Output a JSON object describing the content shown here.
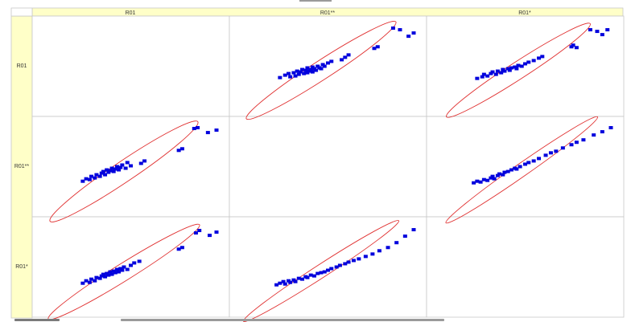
{
  "matrix": {
    "column_headers": [
      "R01",
      "R01**",
      "R01*"
    ],
    "row_headers": [
      "R01",
      "R01**",
      "R01*"
    ],
    "colors": {
      "header_bg": "#ffffc8",
      "grid": "#c8c8c8",
      "point": "#0000dd",
      "ellipse": "#e03030"
    }
  },
  "chart_data": {
    "type": "scatter",
    "title": "",
    "xlabel": "",
    "ylabel": "",
    "grid": false,
    "legend": "none",
    "panels": [
      {
        "row": "R01",
        "col": "R01**",
        "empty": false,
        "xlim": [
          0,
          100
        ],
        "ylim": [
          0,
          100
        ],
        "ellipse": {
          "cx": 46,
          "cy": 45,
          "rx": 52,
          "ry": 5.5,
          "angle": 33
        },
        "points": [
          [
            22,
            36
          ],
          [
            25,
            39
          ],
          [
            27,
            41
          ],
          [
            28,
            37
          ],
          [
            30,
            42
          ],
          [
            31,
            38
          ],
          [
            32,
            44
          ],
          [
            33,
            40
          ],
          [
            34,
            43
          ],
          [
            35,
            46
          ],
          [
            36,
            41
          ],
          [
            37,
            45
          ],
          [
            38,
            42
          ],
          [
            38,
            48
          ],
          [
            39,
            44
          ],
          [
            40,
            46
          ],
          [
            41,
            49
          ],
          [
            41,
            43
          ],
          [
            42,
            47
          ],
          [
            43,
            45
          ],
          [
            44,
            50
          ],
          [
            45,
            48
          ],
          [
            46,
            47
          ],
          [
            47,
            52
          ],
          [
            48,
            50
          ],
          [
            50,
            54
          ],
          [
            52,
            56
          ],
          [
            58,
            58
          ],
          [
            60,
            61
          ],
          [
            62,
            64
          ],
          [
            77,
            72
          ],
          [
            79,
            74
          ],
          [
            92,
            95
          ],
          [
            88,
            97
          ],
          [
            97,
            87
          ],
          [
            100,
            91
          ]
        ]
      },
      {
        "row": "R01",
        "col": "R01*",
        "empty": false,
        "xlim": [
          0,
          100
        ],
        "ylim": [
          0,
          100
        ],
        "ellipse": {
          "cx": 46,
          "cy": 45,
          "rx": 50,
          "ry": 5,
          "angle": 33
        },
        "points": [
          [
            22,
            35
          ],
          [
            25,
            37
          ],
          [
            26,
            40
          ],
          [
            28,
            38
          ],
          [
            30,
            41
          ],
          [
            31,
            43
          ],
          [
            33,
            40
          ],
          [
            34,
            44
          ],
          [
            36,
            42
          ],
          [
            37,
            46
          ],
          [
            38,
            44
          ],
          [
            40,
            47
          ],
          [
            41,
            45
          ],
          [
            42,
            48
          ],
          [
            44,
            49
          ],
          [
            45,
            47
          ],
          [
            46,
            51
          ],
          [
            48,
            50
          ],
          [
            50,
            53
          ],
          [
            52,
            55
          ],
          [
            55,
            57
          ],
          [
            58,
            60
          ],
          [
            60,
            62
          ],
          [
            77,
            74
          ],
          [
            78,
            76
          ],
          [
            80,
            73
          ],
          [
            88,
            95
          ],
          [
            92,
            93
          ],
          [
            95,
            89
          ],
          [
            98,
            95
          ]
        ]
      },
      {
        "row": "R01**",
        "col": "R01",
        "empty": false,
        "xlim": [
          0,
          100
        ],
        "ylim": [
          0,
          100
        ],
        "ellipse": {
          "cx": 46,
          "cy": 44,
          "rx": 52,
          "ry": 6,
          "angle": 34
        },
        "points": [
          [
            22,
            32
          ],
          [
            24,
            35
          ],
          [
            26,
            34
          ],
          [
            27,
            38
          ],
          [
            29,
            36
          ],
          [
            30,
            40
          ],
          [
            32,
            38
          ],
          [
            33,
            42
          ],
          [
            34,
            44
          ],
          [
            35,
            40
          ],
          [
            36,
            46
          ],
          [
            37,
            43
          ],
          [
            38,
            45
          ],
          [
            39,
            48
          ],
          [
            40,
            44
          ],
          [
            41,
            47
          ],
          [
            42,
            50
          ],
          [
            43,
            46
          ],
          [
            44,
            49
          ],
          [
            45,
            52
          ],
          [
            47,
            48
          ],
          [
            48,
            55
          ],
          [
            50,
            51
          ],
          [
            56,
            54
          ],
          [
            58,
            57
          ],
          [
            78,
            70
          ],
          [
            80,
            72
          ],
          [
            87,
            97
          ],
          [
            89,
            98
          ],
          [
            95,
            92
          ],
          [
            100,
            95
          ]
        ]
      },
      {
        "row": "R01**",
        "col": "R01*",
        "empty": false,
        "xlim": [
          0,
          100
        ],
        "ylim": [
          0,
          100
        ],
        "ellipse": {
          "cx": 48,
          "cy": 46,
          "rx": 54,
          "ry": 3.8,
          "angle": 35
        },
        "points": [
          [
            20,
            30
          ],
          [
            22,
            32
          ],
          [
            24,
            31
          ],
          [
            26,
            34
          ],
          [
            28,
            33
          ],
          [
            30,
            36
          ],
          [
            31,
            38
          ],
          [
            32,
            35
          ],
          [
            34,
            39
          ],
          [
            35,
            41
          ],
          [
            37,
            40
          ],
          [
            38,
            43
          ],
          [
            40,
            44
          ],
          [
            42,
            46
          ],
          [
            44,
            48
          ],
          [
            45,
            47
          ],
          [
            47,
            50
          ],
          [
            50,
            53
          ],
          [
            52,
            55
          ],
          [
            55,
            57
          ],
          [
            58,
            60
          ],
          [
            62,
            64
          ],
          [
            65,
            67
          ],
          [
            68,
            69
          ],
          [
            72,
            73
          ],
          [
            77,
            77
          ],
          [
            80,
            80
          ],
          [
            84,
            83
          ],
          [
            90,
            89
          ],
          [
            95,
            93
          ],
          [
            100,
            98
          ]
        ]
      },
      {
        "row": "R01*",
        "col": "R01",
        "empty": false,
        "xlim": [
          0,
          100
        ],
        "ylim": [
          0,
          100
        ],
        "ellipse": {
          "cx": 46,
          "cy": 44,
          "rx": 52,
          "ry": 5,
          "angle": 32
        },
        "points": [
          [
            22,
            30
          ],
          [
            24,
            33
          ],
          [
            26,
            31
          ],
          [
            27,
            35
          ],
          [
            29,
            33
          ],
          [
            30,
            37
          ],
          [
            32,
            36
          ],
          [
            33,
            39
          ],
          [
            34,
            41
          ],
          [
            35,
            38
          ],
          [
            36,
            42
          ],
          [
            37,
            40
          ],
          [
            38,
            44
          ],
          [
            39,
            41
          ],
          [
            40,
            45
          ],
          [
            41,
            43
          ],
          [
            42,
            47
          ],
          [
            43,
            44
          ],
          [
            44,
            48
          ],
          [
            45,
            46
          ],
          [
            46,
            50
          ],
          [
            48,
            47
          ],
          [
            50,
            52
          ],
          [
            52,
            55
          ],
          [
            55,
            57
          ],
          [
            78,
            72
          ],
          [
            80,
            74
          ],
          [
            88,
            92
          ],
          [
            90,
            95
          ],
          [
            96,
            89
          ],
          [
            100,
            93
          ]
        ]
      },
      {
        "row": "R01*",
        "col": "R01**",
        "empty": false,
        "xlim": [
          0,
          100
        ],
        "ylim": [
          0,
          100
        ],
        "ellipse": {
          "cx": 46,
          "cy": 45,
          "rx": 54,
          "ry": 3.8,
          "angle": 33
        },
        "points": [
          [
            20,
            28
          ],
          [
            22,
            30
          ],
          [
            24,
            32
          ],
          [
            25,
            29
          ],
          [
            27,
            33
          ],
          [
            28,
            31
          ],
          [
            30,
            34
          ],
          [
            31,
            32
          ],
          [
            33,
            36
          ],
          [
            35,
            35
          ],
          [
            37,
            38
          ],
          [
            38,
            37
          ],
          [
            40,
            40
          ],
          [
            42,
            39
          ],
          [
            44,
            42
          ],
          [
            46,
            43
          ],
          [
            48,
            44
          ],
          [
            50,
            46
          ],
          [
            52,
            48
          ],
          [
            55,
            50
          ],
          [
            57,
            52
          ],
          [
            60,
            54
          ],
          [
            62,
            56
          ],
          [
            65,
            58
          ],
          [
            68,
            60
          ],
          [
            72,
            63
          ],
          [
            76,
            66
          ],
          [
            80,
            70
          ],
          [
            85,
            74
          ],
          [
            90,
            80
          ],
          [
            95,
            88
          ],
          [
            100,
            96
          ]
        ]
      },
      {
        "row": "R01",
        "col": "R01",
        "empty": true
      },
      {
        "row": "R01**",
        "col": "R01**",
        "empty": true
      },
      {
        "row": "R01*",
        "col": "R01*",
        "empty": true
      }
    ]
  }
}
